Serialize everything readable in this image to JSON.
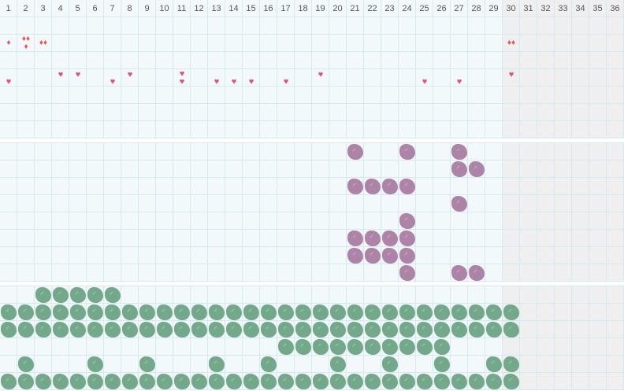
{
  "days": [
    1,
    2,
    3,
    4,
    5,
    6,
    7,
    8,
    9,
    10,
    11,
    12,
    13,
    14,
    15,
    16,
    17,
    18,
    19,
    20,
    21,
    22,
    23,
    24,
    25,
    26,
    27,
    28,
    29,
    30,
    31,
    32,
    33,
    34,
    35,
    36
  ],
  "inactive_from_day": 30,
  "colors": {
    "grid_line": "#d5e9f3",
    "cell_bg": "#f3f8fa",
    "inactive_bg": "#efefef",
    "drop": "#e05a50",
    "heart": "#e0507a",
    "purple": "#ad83a7",
    "green": "#73a98a"
  },
  "symptoms": {
    "row_count": 7,
    "drops_row": 2,
    "drops": {
      "1": 1,
      "2": 3,
      "3": 2,
      "30": 2
    },
    "hearts_row": 4,
    "hearts": {
      "1": "low",
      "4": "high",
      "5": "high",
      "7": "low",
      "8": "high",
      "11": "both",
      "13": "low",
      "14": "low",
      "15": "low",
      "17": "low",
      "19": "high",
      "25": "low",
      "27": "low",
      "30": "high"
    }
  },
  "purple_section": {
    "icon": "purple-blob",
    "rows": [
      [
        21,
        24,
        27
      ],
      [
        27,
        28
      ],
      [
        21,
        22,
        23,
        24
      ],
      [
        27
      ],
      [
        24
      ],
      [
        21,
        22,
        23,
        24
      ],
      [
        21,
        22,
        23,
        24
      ],
      [
        24,
        27,
        28
      ]
    ]
  },
  "green_section": {
    "icon": "green-blob",
    "rows": [
      [
        3,
        4,
        5,
        6,
        7
      ],
      [
        1,
        2,
        3,
        4,
        5,
        6,
        7,
        8,
        9,
        10,
        11,
        12,
        13,
        14,
        15,
        16,
        17,
        18,
        19,
        20,
        21,
        22,
        23,
        24,
        25,
        26,
        27,
        28,
        29,
        30
      ],
      [
        1,
        2,
        3,
        4,
        5,
        6,
        7,
        8,
        9,
        10,
        11,
        12,
        13,
        14,
        15,
        16,
        17,
        18,
        19,
        20,
        21,
        22,
        23,
        24,
        25,
        26,
        27,
        28,
        29,
        30
      ],
      [
        17,
        18,
        19,
        20,
        21,
        22,
        23,
        24,
        25,
        26
      ],
      [
        2,
        6,
        9,
        13,
        16,
        20,
        23,
        26,
        29,
        30
      ],
      [
        1,
        2,
        3,
        4,
        5,
        6,
        7,
        8,
        9,
        10,
        11,
        12,
        13,
        14,
        15,
        16,
        17,
        18,
        19,
        20,
        21,
        22,
        23,
        24,
        25,
        26,
        27,
        28,
        29,
        30
      ]
    ]
  }
}
